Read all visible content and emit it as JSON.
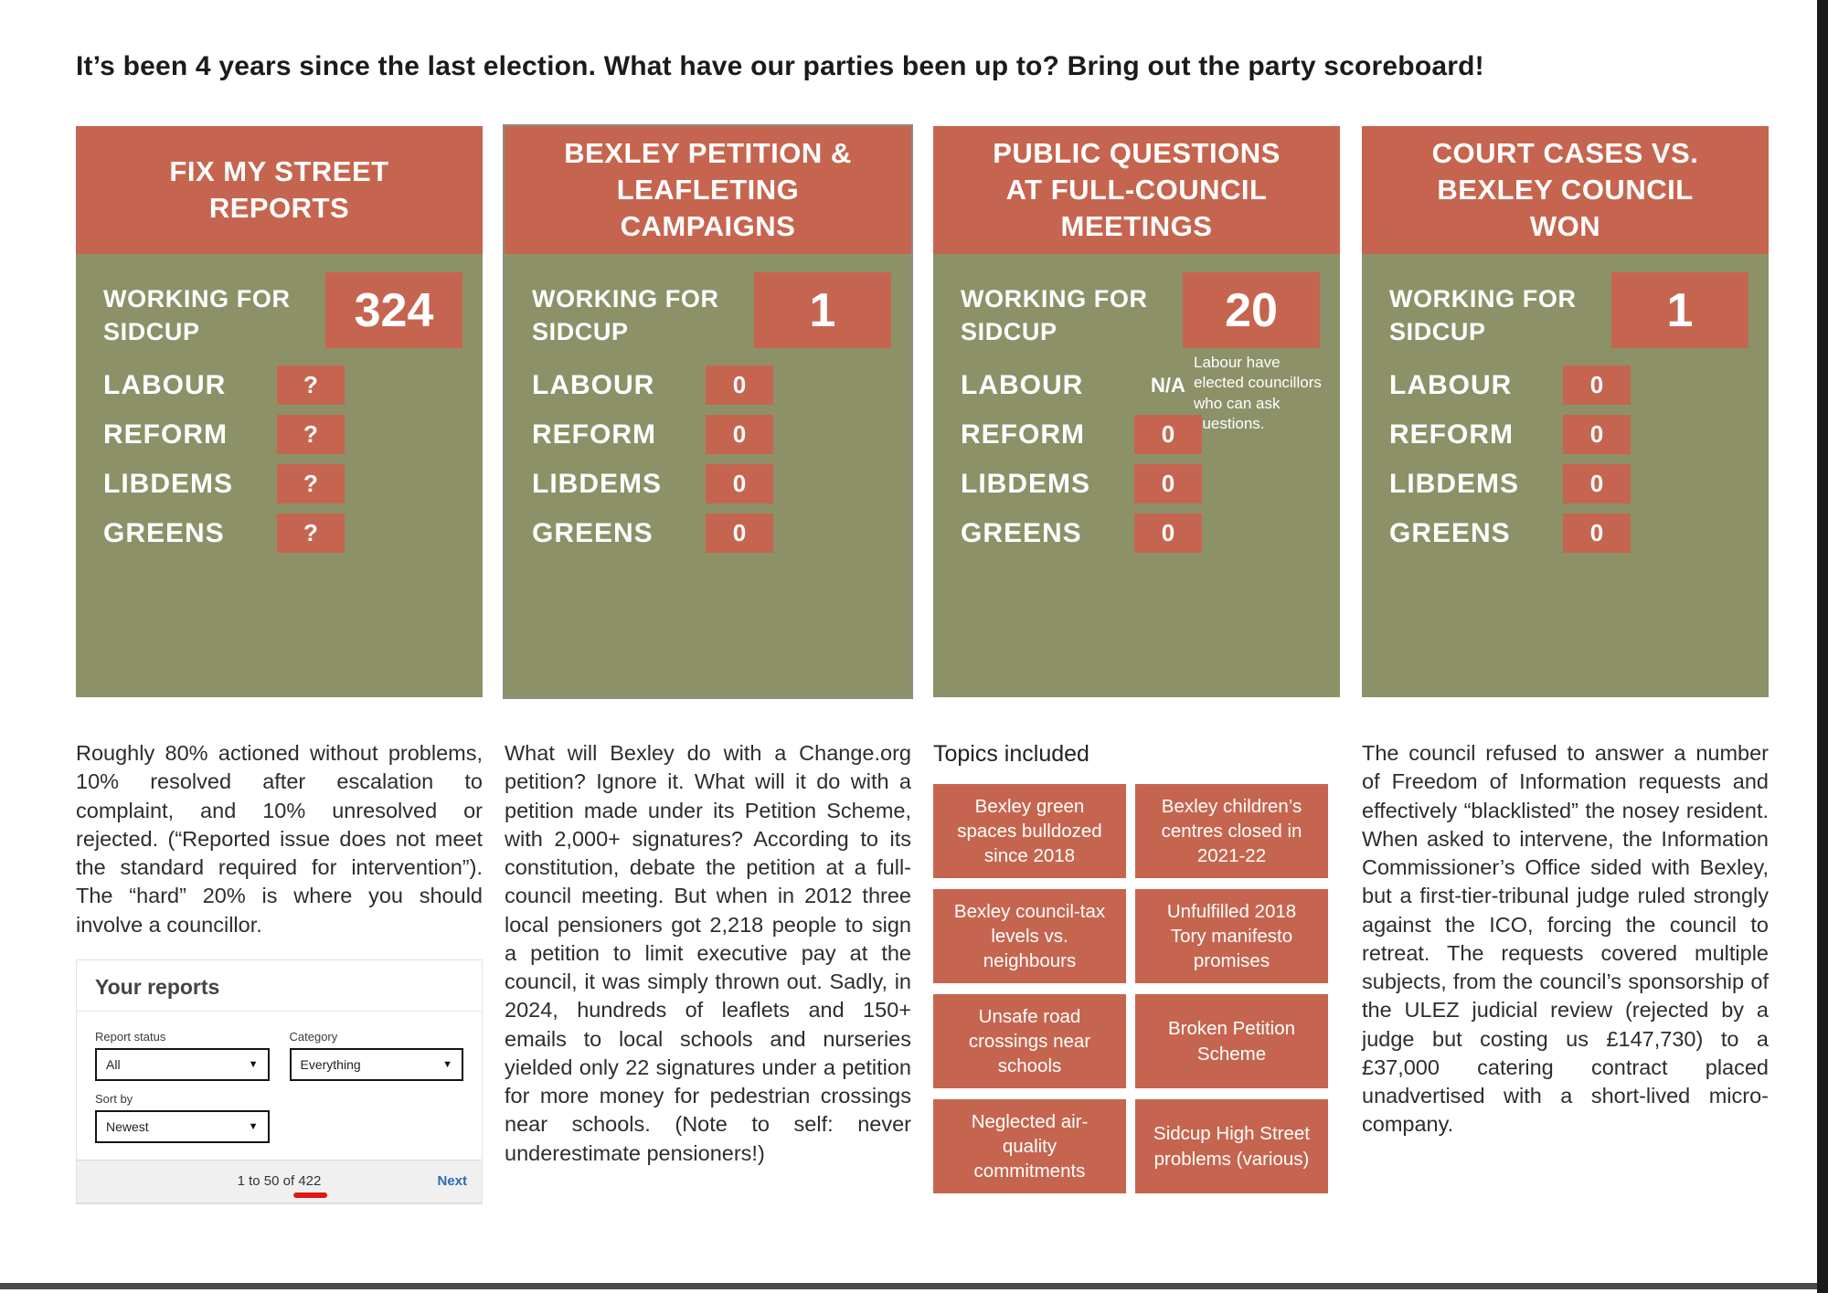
{
  "page": {
    "headline": "It’s been 4 years since the last election. What have our parties been up to? Bring out the party scoreboard!"
  },
  "colors": {
    "terracotta": "#C6654F",
    "olive": "#8D9168",
    "link_blue": "#2A6CB0",
    "underline_red": "#E01717",
    "frame_dark": "#1B1B1B",
    "bottom_line": "#4A4A4A",
    "card_border_gray": "#8C8C8C"
  },
  "scoreboard": {
    "working_label": "WORKING FOR SIDCUP",
    "cards": [
      {
        "title": "FIX MY STREET\nREPORTS",
        "score": "324",
        "rows": [
          {
            "party": "LABOUR",
            "value": "?"
          },
          {
            "party": "REFORM",
            "value": "?"
          },
          {
            "party": "LIBDEMS",
            "value": "?"
          },
          {
            "party": "GREENS",
            "value": "?"
          }
        ]
      },
      {
        "title": "BEXLEY PETITION &\nLEAFLETING\nCAMPAIGNS",
        "score": "1",
        "rows": [
          {
            "party": "LABOUR",
            "value": "0"
          },
          {
            "party": "REFORM",
            "value": "0"
          },
          {
            "party": "LIBDEMS",
            "value": "0"
          },
          {
            "party": "GREENS",
            "value": "0"
          }
        ]
      },
      {
        "title": "PUBLIC QUESTIONS\nAT FULL-COUNCIL\nMEETINGS",
        "score": "20",
        "note": "Labour have elected councillors who can ask questions.",
        "rows": [
          {
            "party": "LABOUR",
            "value": "N/A"
          },
          {
            "party": "REFORM",
            "value": "0"
          },
          {
            "party": "LIBDEMS",
            "value": "0"
          },
          {
            "party": "GREENS",
            "value": "0"
          }
        ]
      },
      {
        "title": "COURT CASES VS.\nBEXLEY COUNCIL\nWON",
        "score": "1",
        "rows": [
          {
            "party": "LABOUR",
            "value": "0"
          },
          {
            "party": "REFORM",
            "value": "0"
          },
          {
            "party": "LIBDEMS",
            "value": "0"
          },
          {
            "party": "GREENS",
            "value": "0"
          }
        ]
      }
    ]
  },
  "notes": {
    "fixmystreet": "Roughly 80% actioned without problems, 10% resolved after escalation to complaint, and 10% unresolved or rejected. (“Reported issue does not meet the standard required for intervention”). The “hard” 20% is where you should involve a councillor.",
    "petitions": "What will Bexley do with a Change.org petition? Ignore it. What will it do with a petition made under its Petition Scheme, with 2,000+ signatures? According to its constitution, debate the petition at a full-council meeting. But when in 2012 three local pensioners got 2,218 people to sign a petition to limit executive pay at the council, it was simply thrown out. Sadly, in 2024, hundreds of leaflets and 150+ emails to local schools and nurseries yielded only 22 signatures under a petition for more money for pedestrian crossings near schools. (Note to self: never underestimate pensioners!)",
    "court": "The council refused to answer a number of Freedom of Information requests and effectively “blacklisted” the nosey resident. When asked to intervene, the Information Commissioner’s Office sided with Bexley, but a first-tier-tribunal judge ruled strongly against the ICO, forcing the council to retreat. The requests covered multiple subjects, from the council’s sponsorship of the ULEZ judicial review (rejected by a judge but costing us £147,730) to a £37,000 catering contract placed unadvertised with a short-lived micro-company."
  },
  "topics": {
    "heading": "Topics included",
    "items": [
      "Bexley green spaces bulldozed since 2018",
      "Bexley children’s centres closed in 2021-22",
      "Bexley council-tax levels vs. neighbours",
      "Unfulfilled 2018 Tory manifesto promises",
      "Unsafe road crossings near schools",
      "Broken Petition Scheme",
      "Neglected air-quality commitments",
      "Sidcup High Street problems (various)"
    ]
  },
  "reports_widget": {
    "title": "Your reports",
    "report_status_label": "Report status",
    "report_status_value": "All",
    "category_label": "Category",
    "category_value": "Everything",
    "sort_by_label": "Sort by",
    "sort_by_value": "Newest",
    "pagination_prefix": "1 to 50 of ",
    "pagination_total": "422",
    "next_label": "Next"
  }
}
